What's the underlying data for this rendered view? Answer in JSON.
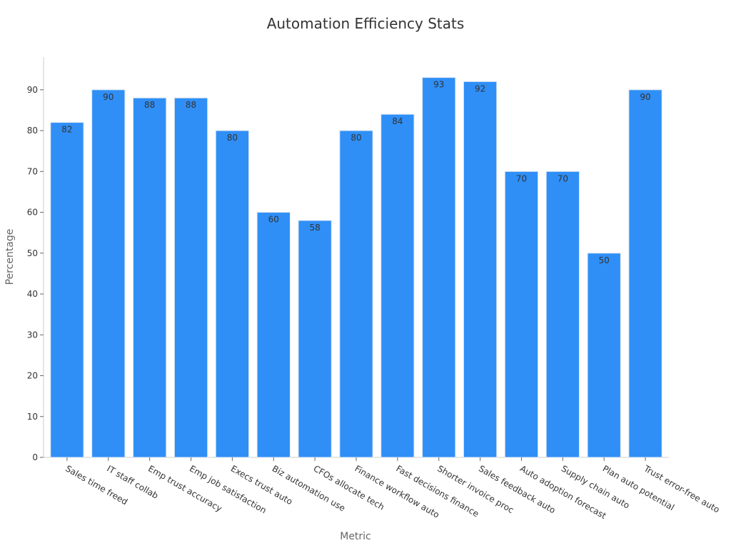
{
  "chart_data": {
    "type": "bar",
    "title": "Automation Efficiency Stats",
    "xlabel": "Metric",
    "ylabel": "Percentage",
    "categories": [
      "Sales time freed",
      "IT staff collab",
      "Emp trust accuracy",
      "Emp job satisfaction",
      "Execs trust auto",
      "Biz automation use",
      "CFOs allocate tech",
      "Finance workflow auto",
      "Fast decisions finance",
      "Shorter invoice proc",
      "Sales feedback auto",
      "Auto adoption forecast",
      "Supply chain auto",
      "Plan auto potential",
      "Trust error-free auto"
    ],
    "values": [
      82,
      90,
      88,
      88,
      80,
      60,
      58,
      80,
      84,
      93,
      92,
      70,
      70,
      50,
      90
    ],
    "ylim": [
      0,
      98
    ],
    "yticks": [
      0,
      10,
      20,
      30,
      40,
      50,
      60,
      70,
      80,
      90
    ],
    "grid": false,
    "bar_color": "#2f8ff7",
    "data_labels": true
  }
}
